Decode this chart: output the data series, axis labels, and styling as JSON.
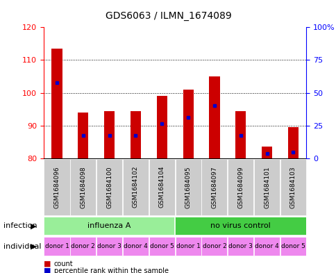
{
  "title": "GDS6063 / ILMN_1674089",
  "samples": [
    "GSM1684096",
    "GSM1684098",
    "GSM1684100",
    "GSM1684102",
    "GSM1684104",
    "GSM1684095",
    "GSM1684097",
    "GSM1684099",
    "GSM1684101",
    "GSM1684103"
  ],
  "count_values": [
    113.5,
    94.0,
    94.5,
    94.5,
    99.0,
    101.0,
    105.0,
    94.5,
    83.5,
    89.5
  ],
  "percentile_values": [
    103.0,
    87.0,
    87.0,
    87.0,
    90.5,
    92.5,
    96.0,
    87.0,
    81.5,
    82.0
  ],
  "ylim_left": [
    80,
    120
  ],
  "ylim_right": [
    0,
    100
  ],
  "yticks_left": [
    80,
    90,
    100,
    110,
    120
  ],
  "yticks_right": [
    0,
    25,
    50,
    75,
    100
  ],
  "ytick_labels_right": [
    "0",
    "25",
    "50",
    "75",
    "100%"
  ],
  "bar_color": "#cc0000",
  "dot_color": "#0000cc",
  "bar_width": 0.4,
  "infection_groups": [
    {
      "label": "influenza A",
      "start": 0,
      "end": 5,
      "color": "#99ee99"
    },
    {
      "label": "no virus control",
      "start": 5,
      "end": 10,
      "color": "#44cc44"
    }
  ],
  "individual_labels": [
    "donor 1",
    "donor 2",
    "donor 3",
    "donor 4",
    "donor 5",
    "donor 1",
    "donor 2",
    "donor 3",
    "donor 4",
    "donor 5"
  ],
  "individual_color": "#ee88ee",
  "individual_alt_color": "#dd77dd",
  "row_labels": [
    "infection",
    "individual"
  ],
  "legend_count_label": "count",
  "legend_pct_label": "percentile rank within the sample",
  "grid_color": "#000000",
  "axis_bg": "#e8e8e8"
}
